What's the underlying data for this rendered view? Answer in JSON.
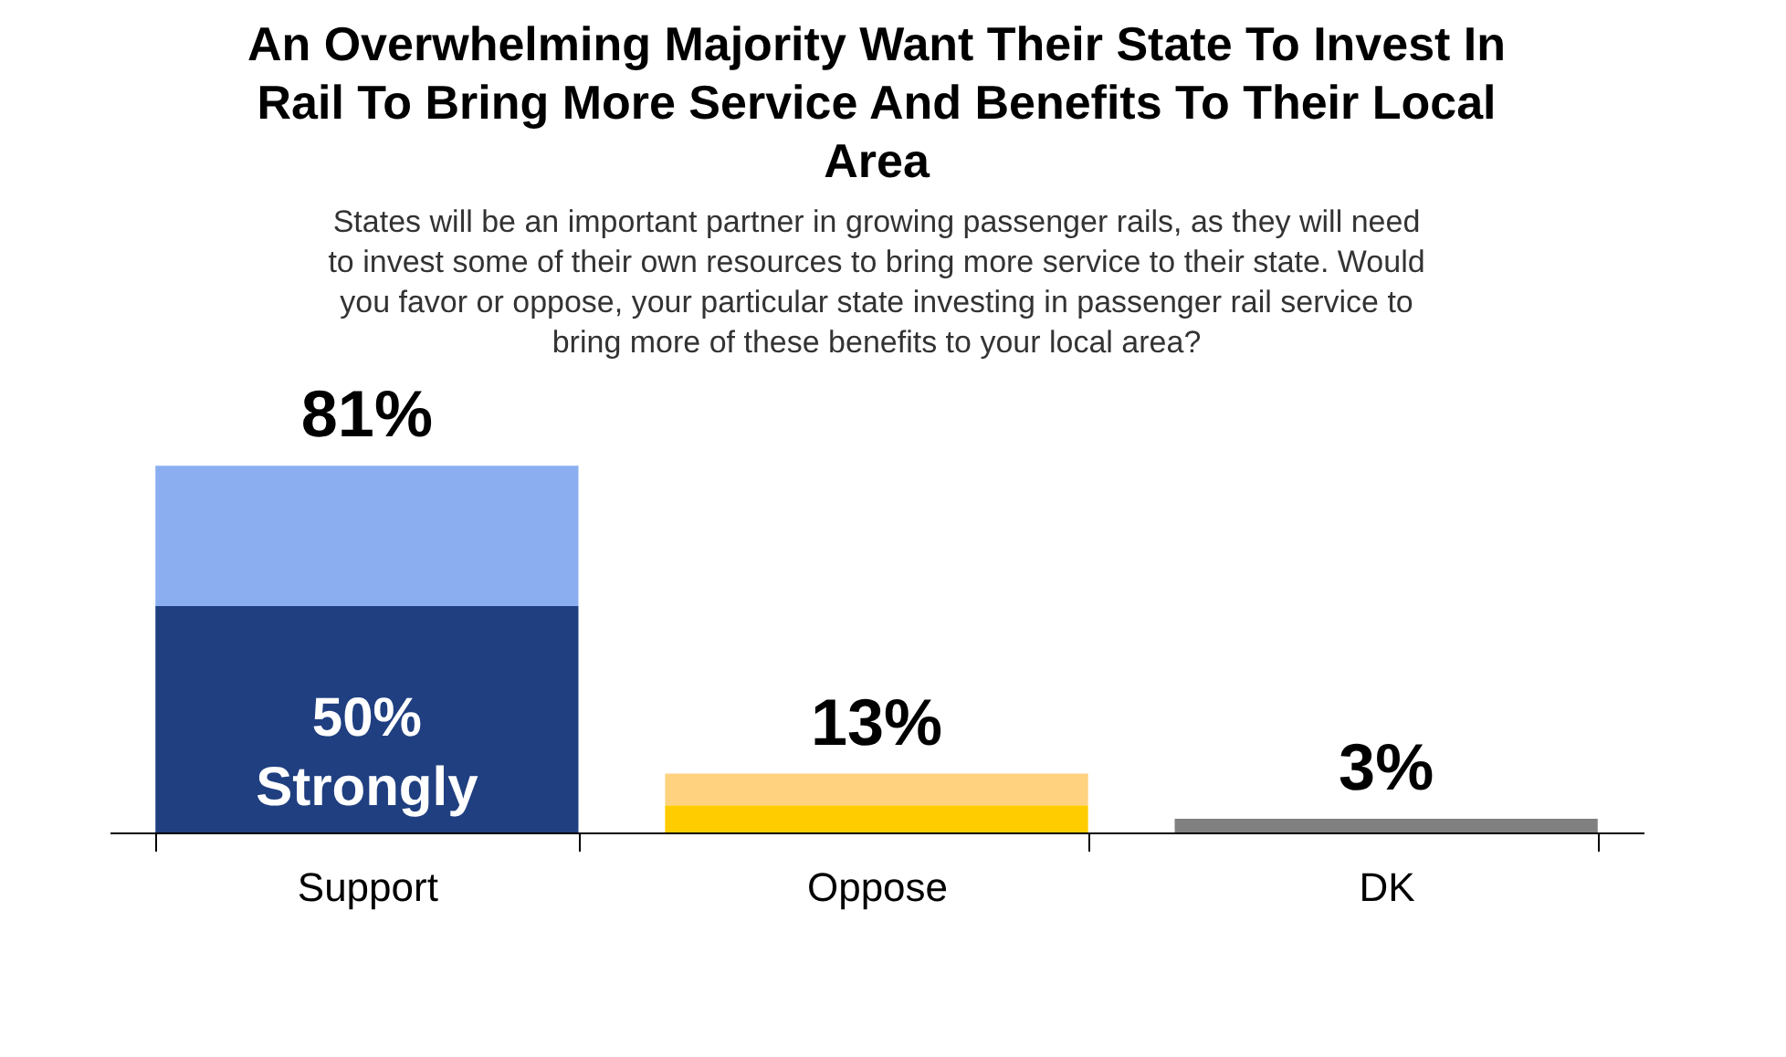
{
  "chart_data": {
    "type": "bar",
    "title": "An Overwhelming Majority Want Their State To Invest In Rail To Bring More Service And Benefits To Their Local Area",
    "subtitle": "States will be an important partner in growing passenger rails, as they will need to invest some of their own resources to bring more service to their state. Would you favor or oppose, your particular state investing in passenger rail service to bring more of these benefits to your local area?",
    "categories": [
      "Support",
      "Oppose",
      "DK"
    ],
    "stacked": true,
    "series": [
      {
        "colors": [
          "#1f3f80",
          "#ffcc00",
          "#808080"
        ],
        "values": [
          50,
          6,
          3
        ],
        "value_labels": [
          "50%\nStrongly",
          null,
          null
        ]
      },
      {
        "colors": [
          "#8aaef0",
          "#ffd27f",
          "#808080"
        ],
        "values": [
          31,
          7,
          null
        ]
      }
    ],
    "totals": [
      "81%",
      "13%",
      "3%"
    ],
    "grid": false
  }
}
